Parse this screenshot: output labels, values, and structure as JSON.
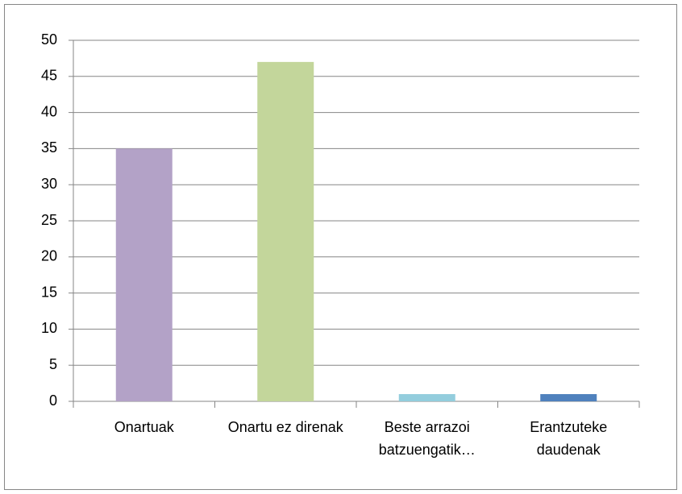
{
  "chart_data": {
    "type": "bar",
    "categories": [
      "Onartuak",
      "Onartu ez direnak",
      "Beste arrazoi batzuengatik…",
      "Erantzuteke daudenak"
    ],
    "values": [
      35,
      47,
      1,
      1
    ],
    "colors": [
      "#b3a2c7",
      "#c3d69b",
      "#93cddd",
      "#4f81bd"
    ],
    "ylim": [
      0,
      50
    ],
    "yticks": [
      0,
      5,
      10,
      15,
      20,
      25,
      30,
      35,
      40,
      45,
      50
    ],
    "grid": true
  }
}
